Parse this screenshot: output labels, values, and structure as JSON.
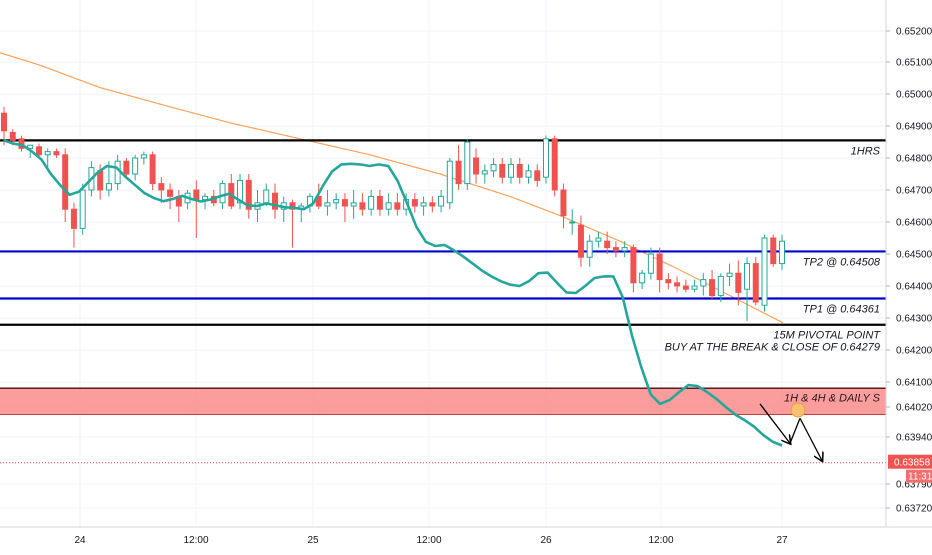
{
  "chart_data": {
    "type": "candlestick",
    "y_range": [
      0.6368,
      0.6528
    ],
    "y_ticks": [
      "0.65200",
      "0.65100",
      "0.65000",
      "0.64900",
      "0.64800",
      "0.64700",
      "0.64600",
      "0.64500",
      "0.64400",
      "0.64300",
      "0.64200",
      "0.64100",
      "0.64020",
      "0.63940",
      "0.63790",
      "0.63720"
    ],
    "x_ticks": [
      "24",
      "12:00",
      "25",
      "12:00",
      "26",
      "12:00",
      "27"
    ],
    "colors": {
      "up": "#26a69a",
      "down": "#ef5350",
      "fast_ma": "#26a69a",
      "slow_ma": "#f7a35c",
      "zone_fill": "#fa8c8c",
      "level_black": "#000000",
      "level_blue": "#0000cc",
      "current_price": "#ef5350"
    },
    "levels": [
      {
        "price": 0.64855,
        "color": "black",
        "label": "1HRS"
      },
      {
        "price": 0.64508,
        "color": "blue",
        "label": "TP2 @ 0.64508"
      },
      {
        "price": 0.64361,
        "color": "blue",
        "label": "TP1 @ 0.64361"
      },
      {
        "price": 0.64279,
        "color": "black",
        "label": "15M PIVOTAL POINT",
        "label2": "BUY AT THE BREAK & CLOSE OF 0.64279"
      }
    ],
    "zone": {
      "from": 0.64,
      "to": 0.6408,
      "label": "1H & 4H & DAILY S"
    },
    "current_price": {
      "value": 0.63858,
      "label": "0.63858",
      "countdown": "11:31"
    },
    "fast_ma": [
      0.64855,
      0.64845,
      0.6484,
      0.6482,
      0.64795,
      0.6475,
      0.64715,
      0.64685,
      0.64695,
      0.64725,
      0.64755,
      0.64775,
      0.6477,
      0.6474,
      0.64715,
      0.6469,
      0.64675,
      0.64665,
      0.64672,
      0.64682,
      0.64672,
      0.64664,
      0.6467,
      0.6468,
      0.64688,
      0.6467,
      0.64652,
      0.6465,
      0.64658,
      0.64652,
      0.64646,
      0.64644,
      0.6464,
      0.64658,
      0.64712,
      0.64758,
      0.6478,
      0.64782,
      0.6478,
      0.64775,
      0.6478,
      0.64775,
      0.64728,
      0.64658,
      0.64585,
      0.64538,
      0.64525,
      0.64528,
      0.64512,
      0.64492,
      0.6447,
      0.64448,
      0.6443,
      0.64415,
      0.64404,
      0.644,
      0.64415,
      0.6444,
      0.64442,
      0.6441,
      0.6438,
      0.64378,
      0.644,
      0.64425,
      0.6443,
      0.6443,
      0.64365,
      0.64245,
      0.64145,
      0.6406,
      0.6403,
      0.64042,
      0.64067,
      0.6409,
      0.64087,
      0.64068,
      0.64046,
      0.6402,
      0.64,
      0.63985,
      0.63968,
      0.63945,
      0.63925,
      0.63913
    ],
    "slow_ma_points": [
      [
        0,
        0.6513
      ],
      [
        40,
        0.6509
      ],
      [
        100,
        0.6502
      ],
      [
        170,
        0.6496
      ],
      [
        230,
        0.6491
      ],
      [
        300,
        0.6486
      ],
      [
        370,
        0.6481
      ],
      [
        440,
        0.6475
      ],
      [
        510,
        0.6468
      ],
      [
        560,
        0.6462
      ],
      [
        620,
        0.6454
      ],
      [
        680,
        0.6445
      ],
      [
        730,
        0.6437
      ],
      [
        783,
        0.64285
      ]
    ],
    "projection_arrows": [
      {
        "from": [
          760,
          0.6403
        ],
        "to": [
          790,
          0.6392
        ]
      },
      {
        "from": [
          790,
          0.6392
        ],
        "to": [
          800,
          0.6399
        ]
      },
      {
        "from": [
          800,
          0.6399
        ],
        "to": [
          822,
          0.63865
        ]
      }
    ],
    "target_marker_at": [
      798,
      0.64012
    ],
    "candles": [
      [
        0.6494,
        0.6496,
        0.6484,
        0.64885
      ],
      [
        0.6488,
        0.6489,
        0.6484,
        0.64855
      ],
      [
        0.6486,
        0.6487,
        0.6482,
        0.6483
      ],
      [
        0.6483,
        0.6484,
        0.648,
        0.6484
      ],
      [
        0.64835,
        0.64845,
        0.648,
        0.6481
      ],
      [
        0.6481,
        0.6483,
        0.6476,
        0.6482
      ],
      [
        0.6482,
        0.6483,
        0.648,
        0.6481
      ],
      [
        0.6481,
        0.6483,
        0.646,
        0.6464
      ],
      [
        0.6464,
        0.6466,
        0.6452,
        0.6458
      ],
      [
        0.6458,
        0.6472,
        0.6456,
        0.647
      ],
      [
        0.647,
        0.6479,
        0.6468,
        0.6477
      ],
      [
        0.6476,
        0.6478,
        0.6467,
        0.647
      ],
      [
        0.647,
        0.6479,
        0.6468,
        0.6472
      ],
      [
        0.6472,
        0.6481,
        0.647,
        0.6479
      ],
      [
        0.6479,
        0.648,
        0.6474,
        0.6475
      ],
      [
        0.6475,
        0.6481,
        0.6473,
        0.648
      ],
      [
        0.648,
        0.6482,
        0.6478,
        0.6481
      ],
      [
        0.6481,
        0.6482,
        0.647,
        0.6472
      ],
      [
        0.6472,
        0.6474,
        0.6466,
        0.647
      ],
      [
        0.647,
        0.6472,
        0.6464,
        0.6468
      ],
      [
        0.6468,
        0.647,
        0.646,
        0.6465
      ],
      [
        0.6466,
        0.647,
        0.6464,
        0.6469
      ],
      [
        0.647,
        0.6473,
        0.6455,
        0.6467
      ],
      [
        0.6467,
        0.6469,
        0.6464,
        0.6468
      ],
      [
        0.6468,
        0.647,
        0.6465,
        0.6466
      ],
      [
        0.6466,
        0.6473,
        0.6464,
        0.6472
      ],
      [
        0.6472,
        0.6475,
        0.6464,
        0.6465
      ],
      [
        0.6466,
        0.6475,
        0.6464,
        0.6473
      ],
      [
        0.6473,
        0.6475,
        0.6461,
        0.6464
      ],
      [
        0.6464,
        0.647,
        0.646,
        0.6466
      ],
      [
        0.6466,
        0.6472,
        0.6465,
        0.647
      ],
      [
        0.6469,
        0.6472,
        0.6461,
        0.6464
      ],
      [
        0.6464,
        0.6468,
        0.646,
        0.6466
      ],
      [
        0.6466,
        0.6467,
        0.6452,
        0.6464
      ],
      [
        0.6464,
        0.6466,
        0.646,
        0.6465
      ],
      [
        0.6465,
        0.6469,
        0.6463,
        0.6468
      ],
      [
        0.6468,
        0.6472,
        0.6464,
        0.6465
      ],
      [
        0.6465,
        0.647,
        0.6462,
        0.6466
      ],
      [
        0.6466,
        0.6469,
        0.6464,
        0.6467
      ],
      [
        0.6467,
        0.6469,
        0.646,
        0.6465
      ],
      [
        0.6465,
        0.647,
        0.6461,
        0.6466
      ],
      [
        0.6466,
        0.6469,
        0.6462,
        0.6464
      ],
      [
        0.6464,
        0.647,
        0.6462,
        0.6468
      ],
      [
        0.6468,
        0.647,
        0.6462,
        0.6464
      ],
      [
        0.6464,
        0.6469,
        0.6462,
        0.6466
      ],
      [
        0.6466,
        0.6469,
        0.6462,
        0.6464
      ],
      [
        0.6464,
        0.6469,
        0.6462,
        0.6467
      ],
      [
        0.6467,
        0.6469,
        0.6463,
        0.6465
      ],
      [
        0.6465,
        0.6468,
        0.6462,
        0.6466
      ],
      [
        0.6466,
        0.6468,
        0.6463,
        0.6465
      ],
      [
        0.6465,
        0.647,
        0.6463,
        0.6468
      ],
      [
        0.6466,
        0.648,
        0.6464,
        0.6479
      ],
      [
        0.6479,
        0.6484,
        0.647,
        0.6472
      ],
      [
        0.6472,
        0.6486,
        0.647,
        0.6485
      ],
      [
        0.648,
        0.6483,
        0.6472,
        0.6475
      ],
      [
        0.6475,
        0.6478,
        0.6472,
        0.6476
      ],
      [
        0.6476,
        0.648,
        0.6474,
        0.6478
      ],
      [
        0.6478,
        0.648,
        0.6472,
        0.6474
      ],
      [
        0.6474,
        0.648,
        0.6472,
        0.6478
      ],
      [
        0.6478,
        0.648,
        0.6472,
        0.6474
      ],
      [
        0.6474,
        0.6478,
        0.6472,
        0.6476
      ],
      [
        0.6476,
        0.6478,
        0.6471,
        0.6473
      ],
      [
        0.6474,
        0.6487,
        0.6472,
        0.6486
      ],
      [
        0.6486,
        0.6487,
        0.6468,
        0.647
      ],
      [
        0.647,
        0.6472,
        0.6458,
        0.6462
      ],
      [
        0.646,
        0.6464,
        0.6456,
        0.646
      ],
      [
        0.6459,
        0.6462,
        0.6446,
        0.6449
      ],
      [
        0.6449,
        0.6456,
        0.6446,
        0.6454
      ],
      [
        0.6454,
        0.6457,
        0.6452,
        0.6455
      ],
      [
        0.6454,
        0.6457,
        0.645,
        0.6452
      ],
      [
        0.6452,
        0.6454,
        0.6449,
        0.6451
      ],
      [
        0.6451,
        0.6454,
        0.6449,
        0.6452
      ],
      [
        0.6452,
        0.6453,
        0.6438,
        0.6441
      ],
      [
        0.6441,
        0.6445,
        0.6439,
        0.6444
      ],
      [
        0.6444,
        0.6452,
        0.6442,
        0.645
      ],
      [
        0.645,
        0.6452,
        0.6438,
        0.6442
      ],
      [
        0.6442,
        0.6444,
        0.6439,
        0.6441
      ],
      [
        0.6441,
        0.6443,
        0.6438,
        0.644
      ],
      [
        0.644,
        0.6442,
        0.6438,
        0.6439
      ],
      [
        0.6439,
        0.6442,
        0.6438,
        0.644
      ],
      [
        0.644,
        0.6444,
        0.6437,
        0.6442
      ],
      [
        0.6442,
        0.6445,
        0.6436,
        0.6437
      ],
      [
        0.6437,
        0.6444,
        0.6435,
        0.6443
      ],
      [
        0.6443,
        0.6447,
        0.644,
        0.6444
      ],
      [
        0.6444,
        0.6448,
        0.6434,
        0.6438
      ],
      [
        0.6439,
        0.6449,
        0.6429,
        0.6447
      ],
      [
        0.6447,
        0.6449,
        0.6434,
        0.6435
      ],
      [
        0.6434,
        0.6456,
        0.6432,
        0.6455
      ],
      [
        0.6455,
        0.6456,
        0.6446,
        0.6447
      ],
      [
        0.6447,
        0.6456,
        0.6445,
        0.6454
      ]
    ]
  }
}
